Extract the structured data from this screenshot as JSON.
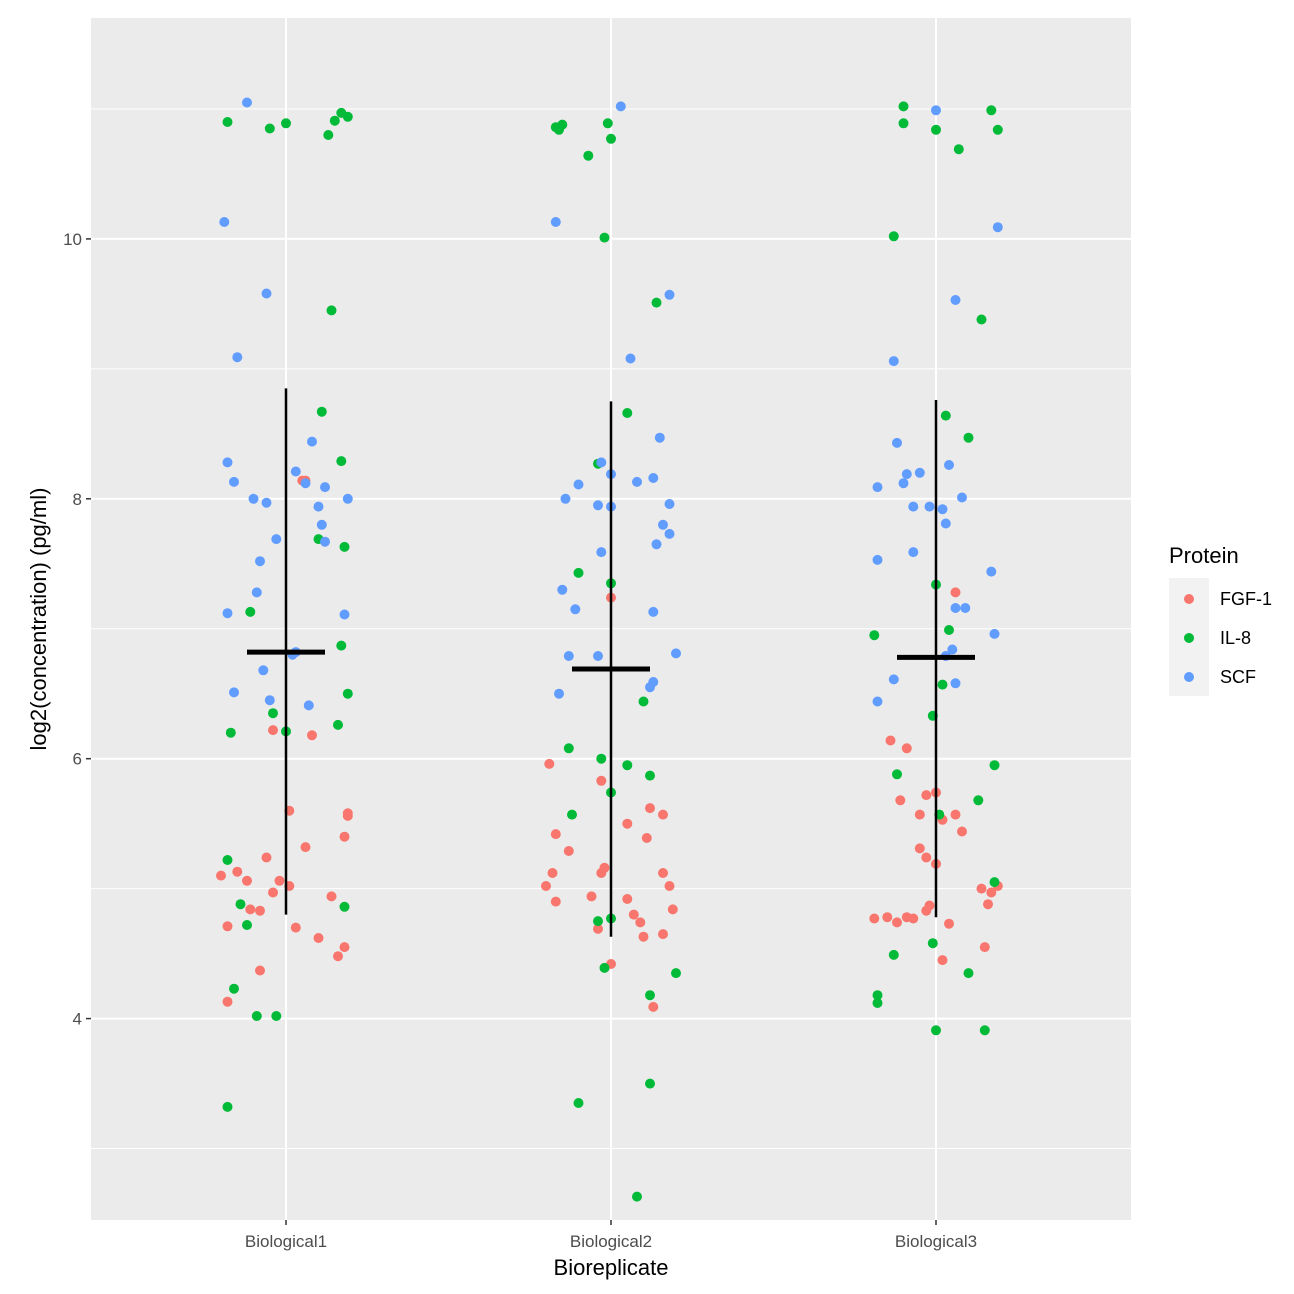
{
  "chart_data": {
    "type": "scatter",
    "subtype": "jitter-with-mean-and-range",
    "title": "",
    "xlabel": "Bioreplicate",
    "ylabel": "log2(concentration) (pg/ml)",
    "categories": [
      "Biological1",
      "Biological2",
      "Biological3"
    ],
    "ylim": [
      2.45,
      11.7
    ],
    "yticks": [
      4,
      6,
      8,
      10
    ],
    "grid": true,
    "legend": {
      "title": "Protein",
      "position": "right",
      "entries": [
        {
          "name": "FGF-1",
          "color": "#F8766D"
        },
        {
          "name": "IL-8",
          "color": "#00BA38"
        },
        {
          "name": "SCF",
          "color": "#619CFF"
        }
      ]
    },
    "summary": [
      {
        "category": "Biological1",
        "mean": 6.82,
        "min": 4.8,
        "max": 8.85
      },
      {
        "category": "Biological2",
        "mean": 6.69,
        "min": 4.63,
        "max": 8.75
      },
      {
        "category": "Biological3",
        "mean": 6.78,
        "min": 4.78,
        "max": 8.76
      }
    ],
    "series": [
      {
        "name": "FGF-1",
        "points": [
          [
            1,
            -0.2,
            5.1
          ],
          [
            1,
            -0.15,
            5.13
          ],
          [
            1,
            -0.12,
            5.06
          ],
          [
            1,
            -0.06,
            5.24
          ],
          [
            1,
            -0.04,
            4.97
          ],
          [
            1,
            -0.02,
            5.06
          ],
          [
            1,
            0.01,
            5.6
          ],
          [
            1,
            0.01,
            5.02
          ],
          [
            1,
            0.06,
            5.32
          ],
          [
            1,
            0.14,
            4.94
          ],
          [
            1,
            0.18,
            5.4
          ],
          [
            1,
            0.19,
            5.56
          ],
          [
            1,
            0.19,
            5.58
          ],
          [
            1,
            -0.18,
            4.71
          ],
          [
            1,
            -0.11,
            4.84
          ],
          [
            1,
            -0.08,
            4.83
          ],
          [
            1,
            -0.08,
            4.37
          ],
          [
            1,
            0.03,
            4.7
          ],
          [
            1,
            0.1,
            4.62
          ],
          [
            1,
            0.16,
            4.48
          ],
          [
            1,
            0.18,
            4.55
          ],
          [
            1,
            -0.18,
            4.13
          ],
          [
            1,
            -0.04,
            6.22
          ],
          [
            1,
            0.08,
            6.18
          ],
          [
            1,
            0.05,
            8.14
          ],
          [
            1,
            0.06,
            8.14
          ],
          [
            2,
            -0.19,
            5.96
          ],
          [
            2,
            -0.17,
            5.42
          ],
          [
            2,
            -0.13,
            5.29
          ],
          [
            2,
            -0.18,
            5.12
          ],
          [
            2,
            -0.2,
            5.02
          ],
          [
            2,
            -0.17,
            4.9
          ],
          [
            2,
            -0.06,
            4.94
          ],
          [
            2,
            -0.03,
            5.12
          ],
          [
            2,
            -0.02,
            5.16
          ],
          [
            2,
            -0.03,
            5.83
          ],
          [
            2,
            0.05,
            5.5
          ],
          [
            2,
            0.11,
            5.39
          ],
          [
            2,
            0.12,
            5.62
          ],
          [
            2,
            0.16,
            5.57
          ],
          [
            2,
            0.16,
            5.12
          ],
          [
            2,
            0.18,
            5.02
          ],
          [
            2,
            0.19,
            4.84
          ],
          [
            2,
            0.05,
            4.92
          ],
          [
            2,
            0.07,
            4.8
          ],
          [
            2,
            0.09,
            4.74
          ],
          [
            2,
            0.1,
            4.63
          ],
          [
            2,
            0.16,
            4.65
          ],
          [
            2,
            -0.04,
            4.69
          ],
          [
            2,
            0.0,
            4.42
          ],
          [
            2,
            0.13,
            4.09
          ],
          [
            2,
            0.0,
            7.24
          ],
          [
            3,
            -0.14,
            6.14
          ],
          [
            3,
            -0.09,
            6.08
          ],
          [
            3,
            -0.11,
            5.68
          ],
          [
            3,
            -0.05,
            5.57
          ],
          [
            3,
            -0.03,
            5.72
          ],
          [
            3,
            -0.0,
            5.74
          ],
          [
            3,
            0.02,
            5.53
          ],
          [
            3,
            0.06,
            5.57
          ],
          [
            3,
            0.08,
            5.44
          ],
          [
            3,
            -0.05,
            5.31
          ],
          [
            3,
            -0.03,
            5.24
          ],
          [
            3,
            -0.0,
            5.19
          ],
          [
            3,
            -0.19,
            4.77
          ],
          [
            3,
            -0.15,
            4.78
          ],
          [
            3,
            -0.12,
            4.74
          ],
          [
            3,
            -0.09,
            4.78
          ],
          [
            3,
            -0.07,
            4.77
          ],
          [
            3,
            -0.03,
            4.83
          ],
          [
            3,
            -0.02,
            4.87
          ],
          [
            3,
            0.04,
            4.73
          ],
          [
            3,
            0.02,
            4.45
          ],
          [
            3,
            0.15,
            4.55
          ],
          [
            3,
            0.14,
            5.0
          ],
          [
            3,
            0.17,
            4.97
          ],
          [
            3,
            0.19,
            5.02
          ],
          [
            3,
            0.16,
            4.88
          ],
          [
            3,
            0.06,
            7.28
          ]
        ]
      },
      {
        "name": "IL-8",
        "points": [
          [
            1,
            -0.18,
            10.9
          ],
          [
            1,
            -0.05,
            10.85
          ],
          [
            1,
            -0.0,
            10.89
          ],
          [
            1,
            0.13,
            10.8
          ],
          [
            1,
            0.15,
            10.91
          ],
          [
            1,
            0.17,
            10.97
          ],
          [
            1,
            0.19,
            10.94
          ],
          [
            1,
            0.14,
            9.45
          ],
          [
            1,
            0.11,
            8.67
          ],
          [
            1,
            0.17,
            8.29
          ],
          [
            1,
            0.1,
            7.69
          ],
          [
            1,
            0.18,
            7.63
          ],
          [
            1,
            -0.11,
            7.13
          ],
          [
            1,
            0.17,
            6.87
          ],
          [
            1,
            0.19,
            6.5
          ],
          [
            1,
            -0.04,
            6.35
          ],
          [
            1,
            0.0,
            6.21
          ],
          [
            1,
            0.16,
            6.26
          ],
          [
            1,
            -0.17,
            6.2
          ],
          [
            1,
            -0.18,
            5.22
          ],
          [
            1,
            -0.14,
            4.88
          ],
          [
            1,
            -0.12,
            4.72
          ],
          [
            1,
            0.18,
            4.86
          ],
          [
            1,
            -0.16,
            4.23
          ],
          [
            1,
            -0.09,
            4.02
          ],
          [
            1,
            -0.03,
            4.02
          ],
          [
            1,
            -0.18,
            3.32
          ],
          [
            2,
            -0.16,
            10.84
          ],
          [
            2,
            -0.15,
            10.88
          ],
          [
            2,
            -0.17,
            10.86
          ],
          [
            2,
            -0.01,
            10.89
          ],
          [
            2,
            0.0,
            10.77
          ],
          [
            2,
            -0.07,
            10.64
          ],
          [
            2,
            -0.02,
            10.01
          ],
          [
            2,
            0.14,
            9.51
          ],
          [
            2,
            0.05,
            8.66
          ],
          [
            2,
            -0.04,
            8.27
          ],
          [
            2,
            -0.1,
            7.43
          ],
          [
            2,
            0.0,
            7.35
          ],
          [
            2,
            0.1,
            6.44
          ],
          [
            2,
            -0.13,
            6.08
          ],
          [
            2,
            -0.03,
            6.0
          ],
          [
            2,
            0.05,
            5.95
          ],
          [
            2,
            0.12,
            5.87
          ],
          [
            2,
            0.0,
            5.74
          ],
          [
            2,
            -0.12,
            5.57
          ],
          [
            2,
            -0.04,
            4.75
          ],
          [
            2,
            0.0,
            4.77
          ],
          [
            2,
            -0.02,
            4.39
          ],
          [
            2,
            0.2,
            4.35
          ],
          [
            2,
            0.12,
            4.18
          ],
          [
            2,
            0.12,
            3.5
          ],
          [
            2,
            -0.1,
            3.35
          ],
          [
            2,
            0.08,
            2.63
          ],
          [
            3,
            -0.1,
            11.02
          ],
          [
            3,
            -0.1,
            10.89
          ],
          [
            3,
            0.0,
            10.84
          ],
          [
            3,
            0.17,
            10.99
          ],
          [
            3,
            0.19,
            10.84
          ],
          [
            3,
            0.07,
            10.69
          ],
          [
            3,
            -0.13,
            10.02
          ],
          [
            3,
            0.14,
            9.38
          ],
          [
            3,
            0.03,
            8.64
          ],
          [
            3,
            0.1,
            8.47
          ],
          [
            3,
            -0.19,
            6.95
          ],
          [
            3,
            0.0,
            7.34
          ],
          [
            3,
            0.04,
            6.99
          ],
          [
            3,
            0.02,
            6.57
          ],
          [
            3,
            -0.01,
            6.33
          ],
          [
            3,
            -0.12,
            5.88
          ],
          [
            3,
            0.18,
            5.95
          ],
          [
            3,
            0.13,
            5.68
          ],
          [
            3,
            0.01,
            5.57
          ],
          [
            3,
            0.18,
            5.05
          ],
          [
            3,
            -0.13,
            4.49
          ],
          [
            3,
            -0.01,
            4.58
          ],
          [
            3,
            0.1,
            4.35
          ],
          [
            3,
            -0.18,
            4.18
          ],
          [
            3,
            -0.18,
            4.12
          ],
          [
            3,
            0.0,
            3.91
          ],
          [
            3,
            0.15,
            3.91
          ]
        ]
      },
      {
        "name": "SCF",
        "points": [
          [
            1,
            -0.12,
            11.05
          ],
          [
            1,
            -0.19,
            10.13
          ],
          [
            1,
            -0.06,
            9.58
          ],
          [
            1,
            -0.15,
            9.09
          ],
          [
            1,
            0.08,
            8.44
          ],
          [
            1,
            -0.18,
            8.28
          ],
          [
            1,
            -0.16,
            8.13
          ],
          [
            1,
            0.03,
            8.21
          ],
          [
            1,
            0.06,
            8.12
          ],
          [
            1,
            0.12,
            8.09
          ],
          [
            1,
            -0.1,
            8.0
          ],
          [
            1,
            -0.06,
            7.97
          ],
          [
            1,
            0.1,
            7.94
          ],
          [
            1,
            0.19,
            8.0
          ],
          [
            1,
            0.11,
            7.8
          ],
          [
            1,
            -0.03,
            7.69
          ],
          [
            1,
            0.12,
            7.67
          ],
          [
            1,
            -0.08,
            7.52
          ],
          [
            1,
            -0.09,
            7.28
          ],
          [
            1,
            -0.18,
            7.12
          ],
          [
            1,
            0.18,
            7.11
          ],
          [
            1,
            0.02,
            6.8
          ],
          [
            1,
            0.03,
            6.82
          ],
          [
            1,
            -0.07,
            6.68
          ],
          [
            1,
            -0.16,
            6.51
          ],
          [
            1,
            -0.05,
            6.45
          ],
          [
            1,
            0.07,
            6.41
          ],
          [
            2,
            -0.17,
            10.13
          ],
          [
            2,
            0.18,
            9.57
          ],
          [
            2,
            0.06,
            9.08
          ],
          [
            2,
            0.15,
            8.47
          ],
          [
            2,
            -0.03,
            8.28
          ],
          [
            2,
            0.0,
            8.19
          ],
          [
            2,
            0.08,
            8.13
          ],
          [
            2,
            0.13,
            8.16
          ],
          [
            2,
            -0.1,
            8.11
          ],
          [
            2,
            -0.14,
            8.0
          ],
          [
            2,
            -0.04,
            7.95
          ],
          [
            2,
            0.0,
            7.94
          ],
          [
            2,
            0.18,
            7.96
          ],
          [
            2,
            0.16,
            7.8
          ],
          [
            2,
            0.18,
            7.73
          ],
          [
            2,
            0.14,
            7.65
          ],
          [
            2,
            -0.03,
            7.59
          ],
          [
            2,
            -0.15,
            7.3
          ],
          [
            2,
            -0.11,
            7.15
          ],
          [
            2,
            0.13,
            7.13
          ],
          [
            2,
            -0.13,
            6.79
          ],
          [
            2,
            -0.04,
            6.79
          ],
          [
            2,
            0.2,
            6.81
          ],
          [
            2,
            0.13,
            6.59
          ],
          [
            2,
            0.12,
            6.55
          ],
          [
            2,
            -0.16,
            6.5
          ],
          [
            2,
            0.03,
            11.02
          ],
          [
            3,
            0.0,
            10.99
          ],
          [
            3,
            0.19,
            10.09
          ],
          [
            3,
            0.06,
            9.53
          ],
          [
            3,
            -0.13,
            9.06
          ],
          [
            3,
            -0.12,
            8.43
          ],
          [
            3,
            0.04,
            8.26
          ],
          [
            3,
            -0.09,
            8.19
          ],
          [
            3,
            -0.05,
            8.2
          ],
          [
            3,
            -0.1,
            8.12
          ],
          [
            3,
            -0.18,
            8.09
          ],
          [
            3,
            0.08,
            8.01
          ],
          [
            3,
            -0.07,
            7.94
          ],
          [
            3,
            -0.02,
            7.94
          ],
          [
            3,
            0.02,
            7.92
          ],
          [
            3,
            0.03,
            7.81
          ],
          [
            3,
            -0.07,
            7.59
          ],
          [
            3,
            -0.18,
            7.53
          ],
          [
            3,
            0.17,
            7.44
          ],
          [
            3,
            0.06,
            7.16
          ],
          [
            3,
            0.09,
            7.16
          ],
          [
            3,
            0.18,
            6.96
          ],
          [
            3,
            0.05,
            6.84
          ],
          [
            3,
            0.03,
            6.79
          ],
          [
            3,
            0.06,
            6.58
          ],
          [
            3,
            -0.13,
            6.61
          ],
          [
            3,
            -0.18,
            6.44
          ]
        ]
      }
    ]
  }
}
